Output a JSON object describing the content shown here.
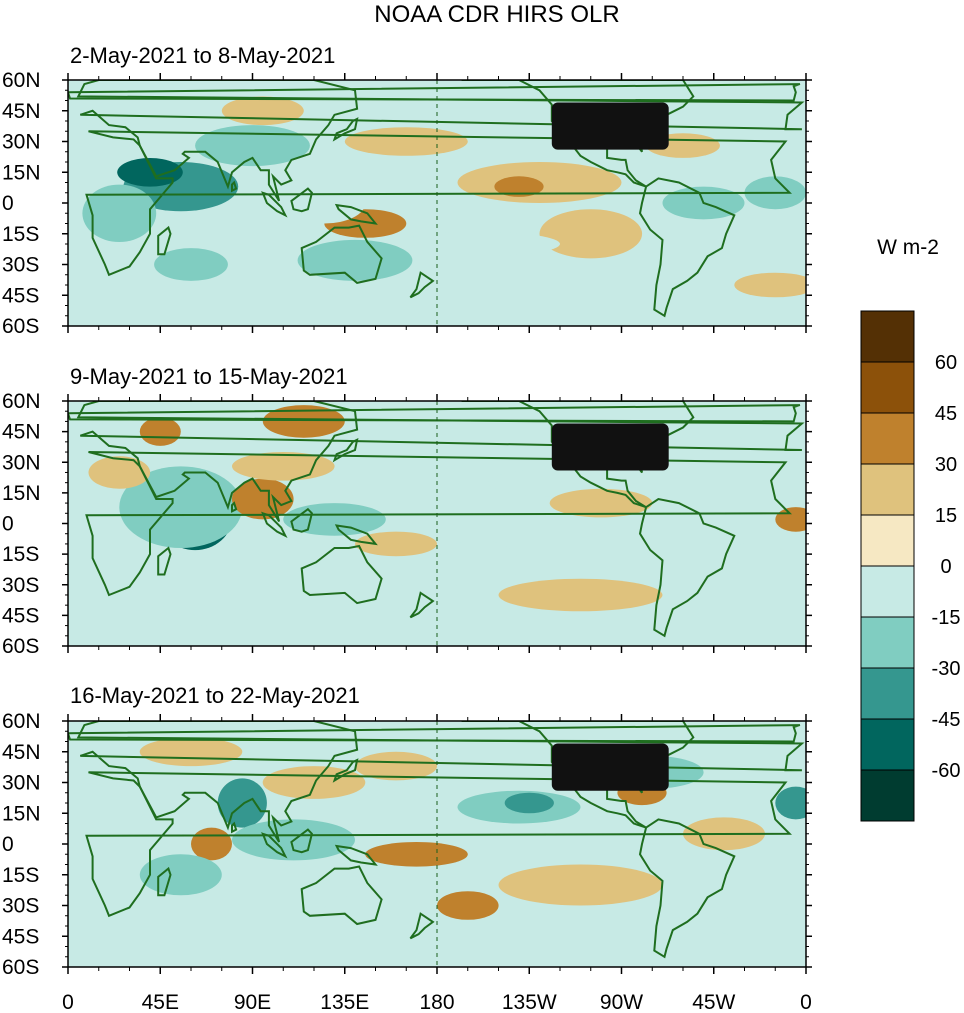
{
  "chart_data": {
    "type": "heatmap",
    "title": "NOAA CDR HIRS OLR",
    "colorbar": {
      "unit_label": "W m-2",
      "tick_labels": [
        "60",
        "45",
        "30",
        "15",
        "0",
        "-15",
        "-30",
        "-45",
        "-60"
      ],
      "levels": [
        -75,
        -60,
        -45,
        -30,
        -15,
        0,
        15,
        30,
        45,
        60,
        75
      ],
      "colors_low_to_high": [
        "#003c30",
        "#01665e",
        "#35978f",
        "#80cdc1",
        "#c7eae5",
        "#f6e8c3",
        "#dfc27d",
        "#bf812d",
        "#8c510a",
        "#543005"
      ]
    },
    "x_axis": {
      "range_deg_east": [
        0,
        360
      ],
      "ticks_deg_east": [
        0,
        45,
        90,
        135,
        180,
        225,
        270,
        315,
        360
      ],
      "tick_labels": [
        "0",
        "45E",
        "90E",
        "135E",
        "180",
        "135W",
        "90W",
        "45W",
        "0"
      ]
    },
    "y_axis": {
      "range_deg": [
        -60,
        60
      ],
      "ticks_deg": [
        60,
        45,
        30,
        15,
        0,
        -15,
        -30,
        -45,
        -60
      ],
      "tick_labels": [
        "60N",
        "45N",
        "30N",
        "15N",
        "0",
        "15S",
        "30S",
        "45S",
        "60S"
      ]
    },
    "dateline_lon": 180,
    "panels": [
      {
        "title": "2-May-2021 to 8-May-2021",
        "features": [
          {
            "lon": 55,
            "lat": 8,
            "rx": 28,
            "ry": 12,
            "value": -45
          },
          {
            "lon": 40,
            "lat": 15,
            "rx": 16,
            "ry": 7,
            "value": -60
          },
          {
            "lon": 90,
            "lat": 28,
            "rx": 28,
            "ry": 10,
            "value": -30
          },
          {
            "lon": 25,
            "lat": -5,
            "rx": 18,
            "ry": 14,
            "value": -30
          },
          {
            "lon": 145,
            "lat": -10,
            "rx": 20,
            "ry": 7,
            "value": 30
          },
          {
            "lon": 140,
            "lat": -28,
            "rx": 28,
            "ry": 10,
            "value": -30
          },
          {
            "lon": 60,
            "lat": -30,
            "rx": 18,
            "ry": 8,
            "value": -30
          },
          {
            "lon": 230,
            "lat": 10,
            "rx": 40,
            "ry": 10,
            "value": 15
          },
          {
            "lon": 220,
            "lat": 8,
            "rx": 12,
            "ry": 5,
            "value": 30
          },
          {
            "lon": 95,
            "lat": 45,
            "rx": 20,
            "ry": 7,
            "value": 15
          },
          {
            "lon": 165,
            "lat": 30,
            "rx": 30,
            "ry": 7,
            "value": 15
          },
          {
            "lon": 255,
            "lat": 35,
            "rx": 15,
            "ry": 8,
            "value": 30
          },
          {
            "lon": 255,
            "lat": -15,
            "rx": 25,
            "ry": 12,
            "value": 15
          },
          {
            "lon": 310,
            "lat": 0,
            "rx": 20,
            "ry": 8,
            "value": -30
          },
          {
            "lon": 345,
            "lat": 5,
            "rx": 15,
            "ry": 8,
            "value": -30
          },
          {
            "lon": 200,
            "lat": -20,
            "rx": 40,
            "ry": 6,
            "value": -15
          },
          {
            "lon": 300,
            "lat": 28,
            "rx": 18,
            "ry": 6,
            "value": 15
          },
          {
            "lon": 125,
            "lat": 0,
            "rx": 20,
            "ry": 10,
            "value": -15
          },
          {
            "lon": 345,
            "lat": -40,
            "rx": 20,
            "ry": 6,
            "value": 15
          }
        ]
      },
      {
        "title": "9-May-2021 to 15-May-2021",
        "features": [
          {
            "lon": 62,
            "lat": 3,
            "rx": 18,
            "ry": 16,
            "value": -60
          },
          {
            "lon": 55,
            "lat": 8,
            "rx": 30,
            "ry": 20,
            "value": -30
          },
          {
            "lon": 95,
            "lat": 12,
            "rx": 15,
            "ry": 10,
            "value": 30
          },
          {
            "lon": 105,
            "lat": 28,
            "rx": 25,
            "ry": 7,
            "value": 15
          },
          {
            "lon": 205,
            "lat": -18,
            "rx": 10,
            "ry": 7,
            "value": -45
          },
          {
            "lon": 200,
            "lat": -20,
            "rx": 20,
            "ry": 12,
            "value": -15
          },
          {
            "lon": 130,
            "lat": 2,
            "rx": 25,
            "ry": 8,
            "value": -30
          },
          {
            "lon": 45,
            "lat": 45,
            "rx": 10,
            "ry": 7,
            "value": 30
          },
          {
            "lon": 115,
            "lat": 50,
            "rx": 20,
            "ry": 8,
            "value": 30
          },
          {
            "lon": 25,
            "lat": 25,
            "rx": 15,
            "ry": 8,
            "value": 15
          },
          {
            "lon": 160,
            "lat": -10,
            "rx": 20,
            "ry": 6,
            "value": 15
          },
          {
            "lon": 300,
            "lat": 40,
            "rx": 30,
            "ry": 6,
            "value": -15
          },
          {
            "lon": 240,
            "lat": 20,
            "rx": 35,
            "ry": 7,
            "value": -15
          },
          {
            "lon": 260,
            "lat": 10,
            "rx": 25,
            "ry": 7,
            "value": 15
          },
          {
            "lon": 355,
            "lat": 2,
            "rx": 10,
            "ry": 6,
            "value": 30
          },
          {
            "lon": 320,
            "lat": -5,
            "rx": 15,
            "ry": 6,
            "value": -15
          },
          {
            "lon": 250,
            "lat": -35,
            "rx": 40,
            "ry": 8,
            "value": 15
          },
          {
            "lon": 150,
            "lat": -35,
            "rx": 15,
            "ry": 10,
            "value": -15
          },
          {
            "lon": 60,
            "lat": -45,
            "rx": 30,
            "ry": 5,
            "value": -15
          }
        ]
      },
      {
        "title": "16-May-2021 to 22-May-2021",
        "features": [
          {
            "lon": 220,
            "lat": 18,
            "rx": 30,
            "ry": 8,
            "value": -30
          },
          {
            "lon": 225,
            "lat": 20,
            "rx": 12,
            "ry": 5,
            "value": -45
          },
          {
            "lon": 85,
            "lat": 20,
            "rx": 12,
            "ry": 12,
            "value": -45
          },
          {
            "lon": 70,
            "lat": 0,
            "rx": 10,
            "ry": 8,
            "value": 30
          },
          {
            "lon": 110,
            "lat": 2,
            "rx": 30,
            "ry": 10,
            "value": -30
          },
          {
            "lon": 170,
            "lat": -5,
            "rx": 25,
            "ry": 6,
            "value": 30
          },
          {
            "lon": 195,
            "lat": -30,
            "rx": 15,
            "ry": 7,
            "value": 30
          },
          {
            "lon": 150,
            "lat": -32,
            "rx": 25,
            "ry": 8,
            "value": -15
          },
          {
            "lon": 120,
            "lat": 30,
            "rx": 25,
            "ry": 8,
            "value": 15
          },
          {
            "lon": 160,
            "lat": 38,
            "rx": 20,
            "ry": 7,
            "value": 15
          },
          {
            "lon": 285,
            "lat": 35,
            "rx": 25,
            "ry": 8,
            "value": -30
          },
          {
            "lon": 280,
            "lat": 25,
            "rx": 12,
            "ry": 6,
            "value": 30
          },
          {
            "lon": 320,
            "lat": 5,
            "rx": 20,
            "ry": 8,
            "value": 15
          },
          {
            "lon": 355,
            "lat": 20,
            "rx": 10,
            "ry": 8,
            "value": -45
          },
          {
            "lon": 60,
            "lat": 45,
            "rx": 25,
            "ry": 7,
            "value": 15
          },
          {
            "lon": 55,
            "lat": -15,
            "rx": 20,
            "ry": 10,
            "value": -30
          },
          {
            "lon": 250,
            "lat": -20,
            "rx": 40,
            "ry": 10,
            "value": 15
          },
          {
            "lon": 10,
            "lat": -25,
            "rx": 15,
            "ry": 8,
            "value": -15
          },
          {
            "lon": 340,
            "lat": -40,
            "rx": 25,
            "ry": 6,
            "value": -15
          }
        ]
      }
    ]
  }
}
